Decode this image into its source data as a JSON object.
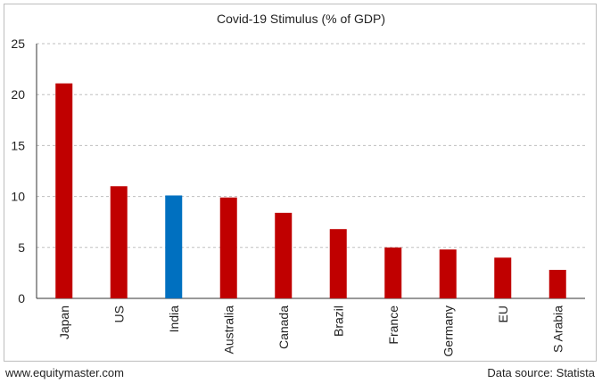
{
  "chart_data": {
    "type": "bar",
    "title": "Covid-19 Stimulus (% of GDP)",
    "xlabel": "",
    "ylabel": "",
    "categories": [
      "Japan",
      "US",
      "India",
      "Australia",
      "Canada",
      "Brazil",
      "France",
      "Germany",
      "EU",
      "S Arabia"
    ],
    "values": [
      21.1,
      11.0,
      10.1,
      9.9,
      8.4,
      6.8,
      5.0,
      4.8,
      4.0,
      2.8
    ],
    "highlight": "India",
    "ylim": [
      0,
      25
    ],
    "yticks": [
      0,
      5,
      10,
      15,
      20,
      25
    ],
    "grid": true,
    "colors": {
      "bar": "#c00000",
      "highlight": "#0070c0",
      "grid": "#bfbfbf"
    }
  },
  "footer": {
    "website": "www.equitymaster.com",
    "source": "Data source: Statista"
  }
}
